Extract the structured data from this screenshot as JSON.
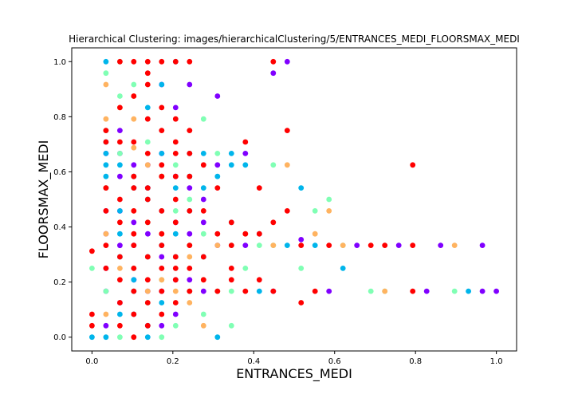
{
  "chart_data": {
    "type": "scatter",
    "title": "Hierarchical Clustering: images/hierarchicalClustering/5/ENTRANCES_MEDI_FLOORSMAX_MEDI",
    "xlabel": "ENTRANCES_MEDI",
    "ylabel": "FLOORSMAX_MEDI",
    "xlim": [
      -0.05,
      1.05
    ],
    "ylim": [
      -0.05,
      1.05
    ],
    "xticks": [
      "0.0",
      "0.2",
      "0.4",
      "0.6",
      "0.8",
      "1.0"
    ],
    "yticks": [
      "0.0",
      "0.2",
      "0.4",
      "0.6",
      "0.8",
      "1.0"
    ],
    "grid": false,
    "legend": "none",
    "colors": [
      "#8000ff",
      "#00b5eb",
      "#80ffb4",
      "#ffb360",
      "#ff0000"
    ],
    "series": [
      {
        "color": "#8000ff",
        "points": [
          [
            0.0345,
            0.375
          ],
          [
            0.069,
            0.458
          ],
          [
            0.069,
            0.333
          ],
          [
            0.1035,
            0.5417
          ],
          [
            0.1035,
            0.2083
          ],
          [
            0.138,
            0.625
          ],
          [
            0.138,
            0.375
          ],
          [
            0.1724,
            0.1667
          ],
          [
            0.1724,
            0.9167
          ],
          [
            0.2069,
            0.8333
          ],
          [
            0.2069,
            0.2917
          ],
          [
            0.2414,
            0.5417
          ],
          [
            0.2414,
            0.9167
          ],
          [
            0.2759,
            0.5
          ],
          [
            0.3103,
            0.875
          ],
          [
            0.3103,
            0.625
          ],
          [
            0.3793,
            0.6667
          ],
          [
            0.4138,
            0.375
          ],
          [
            0.4483,
            0.9583
          ],
          [
            0.4483,
            0.1667
          ],
          [
            0.4828,
            1.0
          ],
          [
            0.5172,
            0.3542
          ],
          [
            0.5862,
            0.1667
          ],
          [
            0.6552,
            0.3333
          ],
          [
            0.7586,
            0.3333
          ],
          [
            0.8276,
            0.1667
          ],
          [
            0.8621,
            0.3333
          ],
          [
            0.9655,
            0.3333
          ],
          [
            0.9655,
            0.1667
          ],
          [
            1.0,
            0.1667
          ],
          [
            0.069,
            0.75
          ],
          [
            0.1724,
            0.0417
          ],
          [
            0.0345,
            0.6667
          ],
          [
            0.1379,
            0.2917
          ],
          [
            0.1034,
            0.4167
          ],
          [
            0.0345,
            0.1667
          ],
          [
            0.1724,
            0.4583
          ],
          [
            0.2069,
            0.0833
          ],
          [
            0.1379,
            0.1667
          ],
          [
            0.069,
            0.6667
          ],
          [
            0.2414,
            0.375
          ],
          [
            0.2759,
            0.1667
          ],
          [
            0.0345,
            0.5417
          ],
          [
            0.1034,
            0.0833
          ],
          [
            0.1724,
            0.6667
          ],
          [
            0.2414,
            0.2083
          ],
          [
            0.0345,
            0.25
          ],
          [
            0.1034,
            0.625
          ],
          [
            0.2069,
            0.4167
          ],
          [
            0.3103,
            0.3333
          ],
          [
            0.069,
            0.125
          ],
          [
            0.0345,
            0.0417
          ],
          [
            0.0345,
            0.4583
          ],
          [
            0.1379,
            0.5417
          ],
          [
            0.1724,
            0.2917
          ],
          [
            0.2069,
            0.5833
          ],
          [
            0.2759,
            0.4167
          ],
          [
            0.3793,
            0.3333
          ],
          [
            0.069,
            0.5833
          ],
          [
            0.1034,
            0.3333
          ],
          [
            0.1379,
            0.0417
          ],
          [
            0.2069,
            0.2083
          ]
        ]
      },
      {
        "color": "#00b5eb",
        "points": [
          [
            0.0345,
            1.0
          ],
          [
            0.0345,
            0.6667
          ],
          [
            0.0345,
            0.5833
          ],
          [
            0.0345,
            0.0
          ],
          [
            0.069,
            0.4583
          ],
          [
            0.069,
            0.625
          ],
          [
            0.1034,
            0.5833
          ],
          [
            0.1379,
            0.8333
          ],
          [
            0.1379,
            0.5
          ],
          [
            0.1379,
            0.0417
          ],
          [
            0.1724,
            0.9167
          ],
          [
            0.1724,
            0.6667
          ],
          [
            0.2069,
            1.0
          ],
          [
            0.2069,
            0.5417
          ],
          [
            0.2414,
            0.4583
          ],
          [
            0.2759,
            0.6667
          ],
          [
            0.2759,
            0.5417
          ],
          [
            0.3103,
            0.0
          ],
          [
            0.3103,
            0.5833
          ],
          [
            0.3448,
            0.4167
          ],
          [
            0.3448,
            0.625
          ],
          [
            0.3793,
            0.625
          ],
          [
            0.4138,
            0.1667
          ],
          [
            0.4828,
            0.3333
          ],
          [
            0.5172,
            0.5417
          ],
          [
            0.5517,
            0.3333
          ],
          [
            0.6207,
            0.25
          ],
          [
            0.931,
            0.1667
          ],
          [
            0.0,
            0.0
          ],
          [
            0.069,
            0.2917
          ],
          [
            0.0345,
            0.625
          ],
          [
            0.1034,
            0.2083
          ],
          [
            0.069,
            0.0833
          ],
          [
            0.1724,
            0.3333
          ],
          [
            0.2414,
            0.6667
          ],
          [
            0.1379,
            0.5417
          ],
          [
            0.1034,
            0.1667
          ],
          [
            0.2069,
            0.375
          ],
          [
            0.3448,
            0.6667
          ],
          [
            0.0345,
            0.7083
          ],
          [
            0.2759,
            0.2917
          ],
          [
            0.1724,
            0.125
          ],
          [
            0.069,
            0.375
          ],
          [
            0.2414,
            0.5833
          ],
          [
            0.1379,
            0.0
          ]
        ]
      },
      {
        "color": "#80ffb4",
        "points": [
          [
            0.0345,
            0.9583
          ],
          [
            0.0345,
            0.75
          ],
          [
            0.069,
            1.0
          ],
          [
            0.069,
            0.875
          ],
          [
            0.1034,
            0.9167
          ],
          [
            0.1034,
            0.5417
          ],
          [
            0.1379,
            0.4167
          ],
          [
            0.1379,
            0.7083
          ],
          [
            0.1724,
            0.0
          ],
          [
            0.2069,
            0.0417
          ],
          [
            0.2069,
            0.4583
          ],
          [
            0.2069,
            0.625
          ],
          [
            0.2414,
            0.1667
          ],
          [
            0.2759,
            0.7917
          ],
          [
            0.2759,
            0.375
          ],
          [
            0.3103,
            0.6667
          ],
          [
            0.3448,
            0.0417
          ],
          [
            0.3448,
            0.3333
          ],
          [
            0.3793,
            0.25
          ],
          [
            0.4138,
            0.375
          ],
          [
            0.4483,
            0.625
          ],
          [
            0.4483,
            0.3333
          ],
          [
            0.5172,
            0.25
          ],
          [
            0.5517,
            0.4583
          ],
          [
            0.5862,
            0.5
          ],
          [
            0.6207,
            0.3333
          ],
          [
            0.6897,
            0.1667
          ],
          [
            0.7241,
            0.1667
          ],
          [
            0.8966,
            0.1667
          ],
          [
            0.0,
            0.25
          ],
          [
            0.0345,
            0.1667
          ],
          [
            0.069,
            0.0
          ],
          [
            0.1034,
            0.0833
          ],
          [
            0.1379,
            0.125
          ],
          [
            0.1724,
            0.5833
          ],
          [
            0.2069,
            0.2917
          ],
          [
            0.2414,
            0.3333
          ],
          [
            0.2759,
            0.0833
          ],
          [
            0.3103,
            0.1667
          ],
          [
            0.069,
            0.6667
          ],
          [
            0.1034,
            0.25
          ],
          [
            0.1724,
            0.4583
          ],
          [
            0.2414,
            0.5
          ],
          [
            0.3448,
            0.1667
          ],
          [
            0.4138,
            0.3333
          ],
          [
            0.0345,
            0.5417
          ],
          [
            0.1379,
            0.2917
          ],
          [
            0.1724,
            0.2083
          ]
        ]
      },
      {
        "color": "#ffb360",
        "points": [
          [
            0.0345,
            0.9167
          ],
          [
            0.0345,
            0.7917
          ],
          [
            0.069,
            0.8333
          ],
          [
            0.1034,
            0.875
          ],
          [
            0.1034,
            0.7917
          ],
          [
            0.1034,
            0.6875
          ],
          [
            0.1379,
            0.625
          ],
          [
            0.1724,
            0.5833
          ],
          [
            0.1724,
            0.2083
          ],
          [
            0.2069,
            0.1667
          ],
          [
            0.2414,
            0.125
          ],
          [
            0.2759,
            0.0417
          ],
          [
            0.2759,
            0.2083
          ],
          [
            0.3103,
            0.3333
          ],
          [
            0.3793,
            0.375
          ],
          [
            0.4483,
            0.3333
          ],
          [
            0.4828,
            0.625
          ],
          [
            0.5517,
            0.375
          ],
          [
            0.5862,
            0.4583
          ],
          [
            0.6207,
            0.3333
          ],
          [
            0.7241,
            0.1667
          ],
          [
            0.8966,
            0.3333
          ],
          [
            0.0345,
            0.5417
          ],
          [
            0.069,
            0.25
          ],
          [
            0.0345,
            0.375
          ],
          [
            0.1034,
            0.4583
          ],
          [
            0.1379,
            0.1667
          ],
          [
            0.1724,
            0.375
          ],
          [
            0.2414,
            0.2917
          ],
          [
            0.0345,
            0.0833
          ]
        ]
      },
      {
        "color": "#ff0000",
        "points": [
          [
            0.069,
            1.0
          ],
          [
            0.1034,
            1.0
          ],
          [
            0.1379,
            1.0
          ],
          [
            0.1724,
            1.0
          ],
          [
            0.2069,
            1.0
          ],
          [
            0.2414,
            1.0
          ],
          [
            0.4483,
            1.0
          ],
          [
            0.1379,
            0.9583
          ],
          [
            0.1379,
            0.9167
          ],
          [
            0.1034,
            0.875
          ],
          [
            0.069,
            0.8333
          ],
          [
            0.1724,
            0.8333
          ],
          [
            0.2069,
            0.7917
          ],
          [
            0.0345,
            0.75
          ],
          [
            0.1724,
            0.75
          ],
          [
            0.2414,
            0.75
          ],
          [
            0.4828,
            0.75
          ],
          [
            0.0345,
            0.7083
          ],
          [
            0.069,
            0.7083
          ],
          [
            0.1034,
            0.7083
          ],
          [
            0.1379,
            0.6667
          ],
          [
            0.2069,
            0.6667
          ],
          [
            0.1724,
            0.625
          ],
          [
            0.2759,
            0.625
          ],
          [
            0.1034,
            0.5833
          ],
          [
            0.1724,
            0.5833
          ],
          [
            0.2069,
            0.5833
          ],
          [
            0.2414,
            0.5833
          ],
          [
            0.0345,
            0.5417
          ],
          [
            0.1034,
            0.5417
          ],
          [
            0.1379,
            0.5417
          ],
          [
            0.3103,
            0.5417
          ],
          [
            0.4138,
            0.5417
          ],
          [
            0.069,
            0.5
          ],
          [
            0.1379,
            0.5
          ],
          [
            0.2069,
            0.5
          ],
          [
            0.1034,
            0.4583
          ],
          [
            0.1724,
            0.4583
          ],
          [
            0.2414,
            0.4583
          ],
          [
            0.2759,
            0.4583
          ],
          [
            0.069,
            0.4167
          ],
          [
            0.1379,
            0.4167
          ],
          [
            0.2069,
            0.4167
          ],
          [
            0.3448,
            0.4167
          ],
          [
            0.1034,
            0.375
          ],
          [
            0.1724,
            0.375
          ],
          [
            0.3103,
            0.375
          ],
          [
            0.3793,
            0.375
          ],
          [
            0.4138,
            0.375
          ],
          [
            0.0345,
            0.3333
          ],
          [
            0.1034,
            0.3333
          ],
          [
            0.1724,
            0.3333
          ],
          [
            0.2414,
            0.3333
          ],
          [
            0.3448,
            0.3333
          ],
          [
            0.5172,
            0.3333
          ],
          [
            0.5862,
            0.3333
          ],
          [
            0.6897,
            0.3333
          ],
          [
            0.7241,
            0.3333
          ],
          [
            0.7931,
            0.3333
          ],
          [
            0.0,
            0.3125
          ],
          [
            0.069,
            0.2917
          ],
          [
            0.1379,
            0.2917
          ],
          [
            0.2069,
            0.2917
          ],
          [
            0.2759,
            0.2917
          ],
          [
            0.1034,
            0.25
          ],
          [
            0.1724,
            0.25
          ],
          [
            0.2414,
            0.25
          ],
          [
            0.069,
            0.2083
          ],
          [
            0.1379,
            0.2083
          ],
          [
            0.2069,
            0.2083
          ],
          [
            0.3448,
            0.2083
          ],
          [
            0.4138,
            0.2083
          ],
          [
            0.1034,
            0.1667
          ],
          [
            0.1724,
            0.1667
          ],
          [
            0.2414,
            0.1667
          ],
          [
            0.3103,
            0.1667
          ],
          [
            0.3793,
            0.1667
          ],
          [
            0.4483,
            0.1667
          ],
          [
            0.5517,
            0.1667
          ],
          [
            0.7931,
            0.1667
          ],
          [
            0.069,
            0.125
          ],
          [
            0.1379,
            0.125
          ],
          [
            0.2069,
            0.125
          ],
          [
            0.5172,
            0.125
          ],
          [
            0.0,
            0.0833
          ],
          [
            0.1034,
            0.0833
          ],
          [
            0.1724,
            0.0833
          ],
          [
            0.069,
            0.0417
          ],
          [
            0.1379,
            0.0417
          ],
          [
            0.0,
            0.0417
          ],
          [
            0.1034,
            0.0
          ],
          [
            0.7931,
            0.625
          ],
          [
            0.3793,
            0.7083
          ],
          [
            0.2069,
            0.7083
          ],
          [
            0.1379,
            0.7917
          ],
          [
            0.2414,
            0.6667
          ],
          [
            0.4483,
            0.4167
          ],
          [
            0.4828,
            0.4583
          ],
          [
            0.0345,
            0.25
          ],
          [
            0.2759,
            0.2083
          ],
          [
            0.0345,
            0.4583
          ],
          [
            0.2069,
            0.25
          ],
          [
            0.3448,
            0.25
          ]
        ]
      }
    ]
  }
}
